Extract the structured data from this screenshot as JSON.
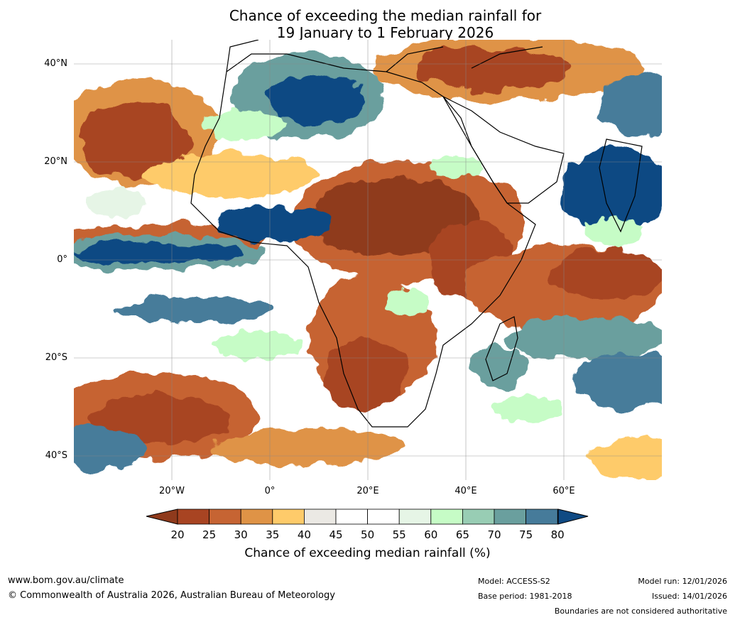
{
  "title": {
    "line1": "Chance of exceeding the median rainfall for",
    "line2": "19 January to 1 February 2026"
  },
  "map": {
    "region": "Africa",
    "lat_labels": [
      {
        "text": "40°N",
        "lat": 40
      },
      {
        "text": "20°N",
        "lat": 20
      },
      {
        "text": "0°",
        "lat": 0
      },
      {
        "text": "20°S",
        "lat": -20
      },
      {
        "text": "40°S",
        "lat": -40
      }
    ],
    "lon_labels": [
      {
        "text": "20°W",
        "lon": -20
      },
      {
        "text": "0°",
        "lon": 0
      },
      {
        "text": "20°E",
        "lon": 20
      },
      {
        "text": "40°E",
        "lon": 40
      },
      {
        "text": "60°E",
        "lon": 60
      }
    ],
    "extent": {
      "lon_min": -40,
      "lon_max": 80,
      "lat_min": -45,
      "lat_max": 45
    },
    "colors": {
      "c20": "#8f3a1c",
      "c25": "#a84422",
      "c30": "#c66433",
      "c35": "#df9346",
      "c40": "#fecb6a",
      "c45": "#ebe9e4",
      "c50": "#ffffff",
      "c55": "#ffffff",
      "c60": "#e6f5e6",
      "c65": "#c6fcc6",
      "c70": "#98cdb4",
      "c75": "#6a9f9e",
      "c80": "#467b9a",
      "cmax": "#0f4a83"
    }
  },
  "colorbar": {
    "ticks": [
      "20",
      "25",
      "30",
      "35",
      "40",
      "45",
      "50",
      "55",
      "60",
      "65",
      "70",
      "75",
      "80"
    ],
    "colors": [
      "#a84422",
      "#c66433",
      "#df9346",
      "#fecb6a",
      "#ebe9e4",
      "#ffffff",
      "#ffffff",
      "#e6f5e6",
      "#c6fcc6",
      "#98cdb4",
      "#6a9f9e",
      "#467b9a"
    ],
    "low_color": "#8f3a1c",
    "high_color": "#0f4a83",
    "label": "Chance of exceeding median rainfall (%)"
  },
  "footer": {
    "website": "www.bom.gov.au/climate",
    "copyright": "© Commonwealth of Australia 2026, Australian Bureau of Meteorology",
    "model": "Model: ACCESS-S2",
    "base_period": "Base period: 1981-2018",
    "model_run": "Model run: 12/01/2026",
    "issued": "Issued: 14/01/2026",
    "disclaimer": "Boundaries are not considered authoritative"
  }
}
